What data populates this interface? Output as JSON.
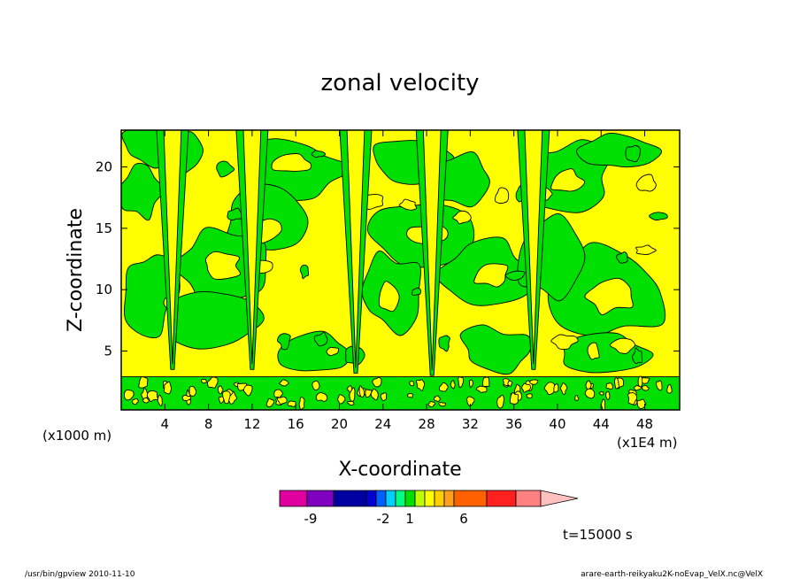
{
  "chart_data": {
    "type": "heatmap",
    "title": "zonal velocity",
    "xlabel": "X-coordinate",
    "ylabel": "Z-coordinate",
    "x_unit_label": "(x1E4 m)",
    "y_unit_label": "(x1000 m)",
    "x_ticks": [
      "4",
      "8",
      "12",
      "16",
      "20",
      "24",
      "28",
      "32",
      "36",
      "40",
      "44",
      "48"
    ],
    "x_tick_values": [
      4,
      8,
      12,
      16,
      20,
      24,
      28,
      32,
      36,
      40,
      44,
      48
    ],
    "xlim": [
      0,
      51.2
    ],
    "y_ticks": [
      "5",
      "10",
      "15",
      "20"
    ],
    "y_tick_values": [
      5,
      10,
      15,
      20
    ],
    "ylim": [
      0.2,
      23
    ],
    "time_label": "t=15000 s",
    "colorbar": {
      "colors": [
        "#e000a0",
        "#8000c0",
        "#0000a0",
        "#0000d0",
        "#0060ff",
        "#00d0ff",
        "#00ff80",
        "#00e000",
        "#c0ff00",
        "#ffff00",
        "#ffd000",
        "#ffa020",
        "#ff6000",
        "#ff2020",
        "#ff8080",
        "#ffc0c0"
      ],
      "labels": [
        "-9",
        "-2",
        "1",
        "6"
      ]
    },
    "fill_colors": {
      "positive": "#ffff00",
      "negative": "#00e000"
    },
    "jets": [
      {
        "x": 4.7,
        "z_bottom": 3.5
      },
      {
        "x": 12.0,
        "z_bottom": 3.5
      },
      {
        "x": 21.5,
        "z_bottom": 3.2
      },
      {
        "x": 28.5,
        "z_bottom": 3.0
      },
      {
        "x": 37.8,
        "z_bottom": 3.5
      }
    ]
  },
  "footer": {
    "left": "/usr/bin/gpview 2010-11-10",
    "right": "arare-earth-reikyaku2K-noEvap_VelX.nc@VelX"
  }
}
